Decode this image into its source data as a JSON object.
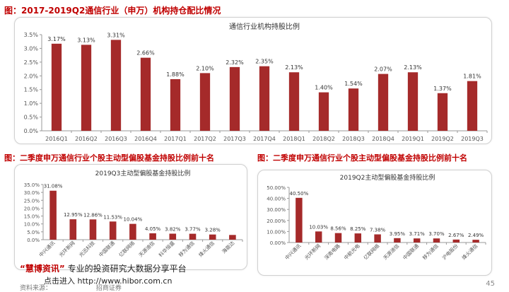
{
  "headings": {
    "top": "图：2017-2019Q2通信行业（申万）机构持仓配比情况",
    "bottom_left": "图：二季度申万通信行业个股主动型偏股基金持股比例前十名",
    "bottom_right": "图：二季度申万通信行业个股主动型偏股基金持股比例前十名"
  },
  "colors": {
    "bar": "#a52a2a",
    "heading": "#c00000",
    "axis": "#999999"
  },
  "watermark": {
    "quote_open": "“",
    "brand": "慧博资讯",
    "quote_close": "”",
    "tagline": "专业的投资研究大数据分享平台",
    "link_text": "点击进入",
    "url": "http://www.hibor.com.cn",
    "source_prefix": "资料来源：",
    "source_suffix": "招商证券"
  },
  "page_number": "45",
  "chart_data": [
    {
      "type": "bar",
      "title": "通信行业机构持股比例",
      "categories": [
        "2016Q1",
        "2016Q2",
        "2016Q3",
        "2016Q4",
        "2017Q1",
        "2017Q2",
        "2017Q3",
        "2017Q4",
        "2018Q1",
        "2018Q2",
        "2018Q3",
        "2018Q4",
        "2019Q1",
        "2019Q2",
        "2019Q3"
      ],
      "values": [
        3.17,
        3.13,
        3.31,
        2.66,
        1.88,
        2.1,
        2.32,
        2.35,
        2.13,
        1.4,
        1.54,
        2.07,
        2.13,
        1.37,
        1.81
      ],
      "data_labels": [
        "3.17%",
        "3.13%",
        "3.31%",
        "2.66%",
        "1.88%",
        "2.10%",
        "2.32%",
        "2.35%",
        "2.13%",
        "1.40%",
        "1.54%",
        "2.07%",
        "2.13%",
        "1.37%",
        "1.81%"
      ],
      "yticks": [
        "0.0%",
        "0.5%",
        "1.0%",
        "1.5%",
        "2.0%",
        "2.5%",
        "3.0%",
        "3.5%"
      ],
      "ylim": [
        0,
        3.5
      ],
      "grid": false,
      "legend": "none"
    },
    {
      "type": "bar",
      "title": "2019Q3主动型偏股基金持股比例",
      "categories": [
        "中兴通讯",
        "光环新网",
        "光迅科技",
        "中国联通",
        "亿联网络",
        "天源迪信",
        "科华恒盛",
        "移为通信",
        "烽火通信",
        "海能达"
      ],
      "values": [
        31.08,
        12.95,
        12.86,
        11.53,
        10.04,
        4.05,
        3.82,
        3.77,
        3.28,
        3.0
      ],
      "data_labels": [
        "31.08%",
        "12.95%",
        "12.86%",
        "11.53%",
        "10.04%",
        "4.05%",
        "3.82%",
        "3.77%",
        "3.28%",
        ""
      ],
      "yticks": [
        "0.0%",
        "5.0%",
        "10.0%",
        "15.0%",
        "20.0%",
        "25.0%",
        "30.0%",
        "35.0%"
      ],
      "ylim": [
        0,
        35
      ],
      "grid": false,
      "legend": "none"
    },
    {
      "type": "bar",
      "title": "2019Q2主动型偏股基金持股比例",
      "categories": [
        "中兴通讯",
        "光环新网",
        "深南电路",
        "中航光电",
        "亿联网络",
        "天源迪信",
        "中国联通",
        "移为通信",
        "沪电股份",
        "烽火通信"
      ],
      "values": [
        40.5,
        10.03,
        8.56,
        8.25,
        7.38,
        3.95,
        3.71,
        3.7,
        2.67,
        2.49
      ],
      "data_labels": [
        "40.50%",
        "10.03%",
        "8.56%",
        "8.25%",
        "7.38%",
        "3.95%",
        "3.71%",
        "3.70%",
        "2.67%",
        "2.49%"
      ],
      "yticks": [
        "0.00%",
        "10.00%",
        "20.00%",
        "30.00%",
        "40.00%",
        "50.00%"
      ],
      "ylim": [
        0,
        50
      ],
      "grid": false,
      "legend": "none"
    }
  ]
}
